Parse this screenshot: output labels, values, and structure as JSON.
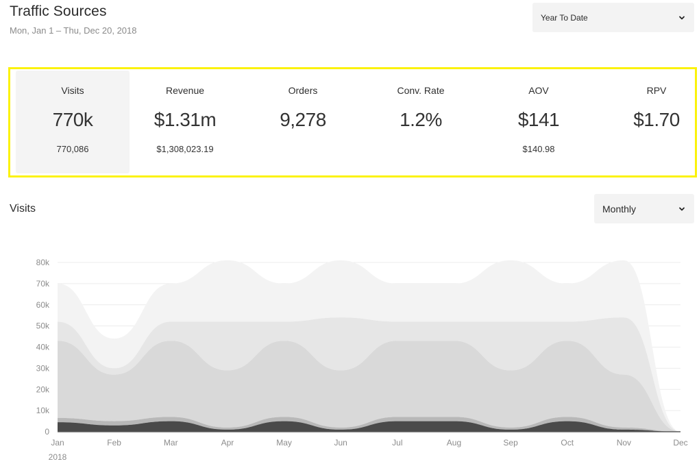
{
  "header": {
    "title": "Traffic Sources",
    "date_range": "Mon, Jan 1 – Thu, Dec 20, 2018",
    "range_select": {
      "value": "Year To Date",
      "icon": "chevron-down-icon"
    }
  },
  "kpis": [
    {
      "label": "Visits",
      "value": "770k",
      "sub": "770,086",
      "active": true
    },
    {
      "label": "Revenue",
      "value": "$1.31m",
      "sub": "$1,308,023.19",
      "active": false
    },
    {
      "label": "Orders",
      "value": "9,278",
      "sub": "",
      "active": false
    },
    {
      "label": "Conv. Rate",
      "value": "1.2%",
      "sub": "",
      "active": false
    },
    {
      "label": "AOV",
      "value": "$141",
      "sub": "$140.98",
      "active": false
    },
    {
      "label": "RPV",
      "value": "$1.70",
      "sub": "",
      "active": false
    }
  ],
  "kpi_box": {
    "highlight_color": "#fbf20a"
  },
  "visits_section": {
    "title": "Visits",
    "period_select": {
      "value": "Monthly",
      "icon": "chevron-down-icon"
    }
  },
  "chart_data": {
    "type": "area",
    "stacked": true,
    "title": "",
    "xlabel": "",
    "ylabel": "",
    "year_label": "2018",
    "categories": [
      "Jan",
      "Feb",
      "Mar",
      "Apr",
      "May",
      "Jun",
      "Jul",
      "Aug",
      "Sep",
      "Oct",
      "Nov",
      "Dec"
    ],
    "ylim": [
      0,
      80000
    ],
    "y_ticks": [
      0,
      10000,
      20000,
      30000,
      40000,
      50000,
      60000,
      70000,
      80000
    ],
    "y_tick_labels": [
      "0",
      "10k",
      "20k",
      "30k",
      "40k",
      "50k",
      "60k",
      "70k",
      "80k"
    ],
    "grid": true,
    "series": [
      {
        "values": [
          4500,
          3000,
          5000,
          1000,
          5000,
          1000,
          5000,
          5000,
          1000,
          5000,
          1000,
          0
        ],
        "color": "#4a4a4a"
      },
      {
        "values": [
          2000,
          2000,
          2000,
          1000,
          2000,
          1000,
          2000,
          2000,
          1000,
          2000,
          1000,
          0
        ],
        "color": "#b8b8b8"
      },
      {
        "values": [
          36500,
          22000,
          36000,
          27000,
          36000,
          27000,
          36000,
          36000,
          27000,
          36000,
          25000,
          0
        ],
        "color": "#d9d9d9"
      },
      {
        "values": [
          9000,
          3000,
          9000,
          23000,
          9000,
          25000,
          9000,
          9000,
          23000,
          9000,
          27000,
          0
        ],
        "color": "#e6e6e6"
      },
      {
        "values": [
          18000,
          14000,
          18000,
          29000,
          18000,
          27000,
          18000,
          18000,
          29000,
          18000,
          27000,
          0
        ],
        "color": "#f3f3f3"
      }
    ]
  }
}
